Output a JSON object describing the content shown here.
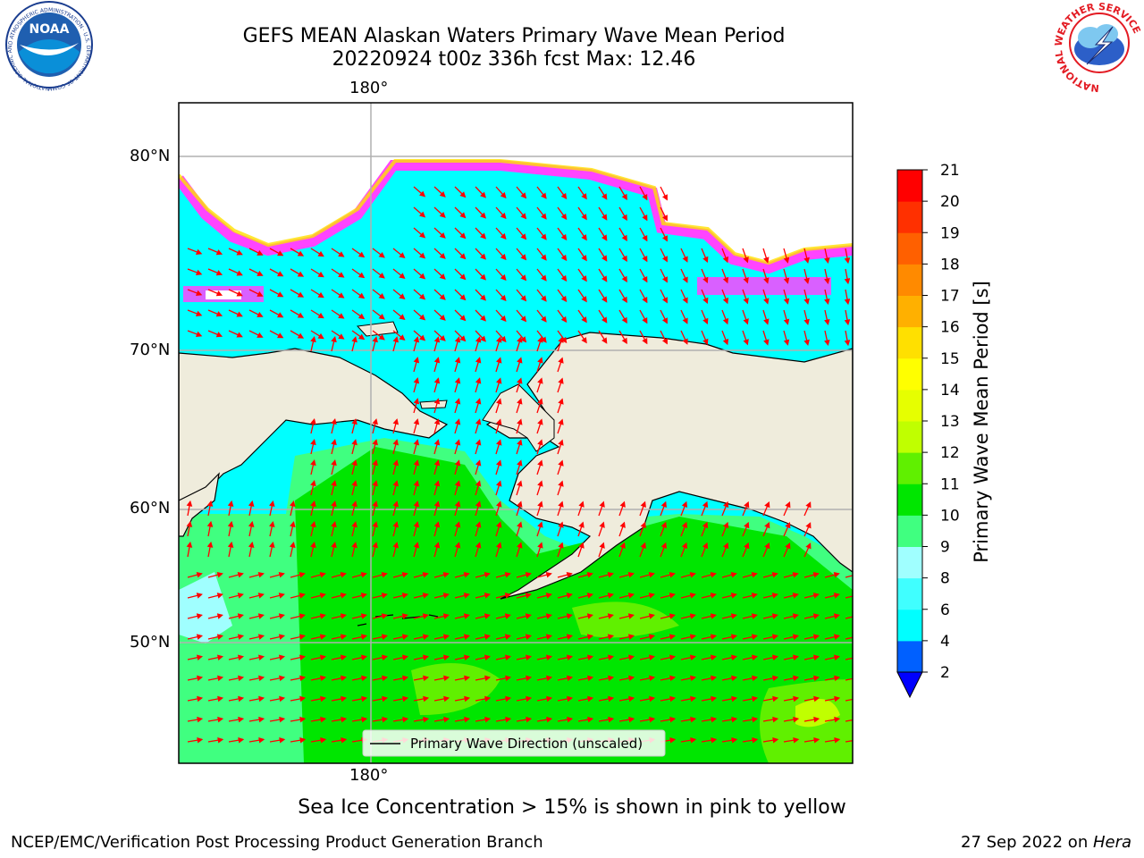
{
  "header": {
    "title_line1": "GEFS MEAN Alaskan Waters Primary Wave Mean Period",
    "title_line2": "20220924 t00z 336h fcst   Max: 12.46",
    "noaa_logo_text": "NOAA",
    "noaa_ring_text": "NATIONAL OCEANIC AND ATMOSPHERIC ADMINISTRATION · U.S. DEPARTMENT OF COMMERCE",
    "nws_ring_text": "NATIONAL WEATHER SERVICE"
  },
  "map": {
    "lon_label_top": "180°",
    "lon_label_bottom": "180°",
    "lat_labels": [
      "80°N",
      "70°N",
      "60°N",
      "50°N"
    ],
    "legend_label": "Primary Wave Direction (unscaled)",
    "colors": {
      "land": "#efecdc",
      "ice_pink": "#ff44ff",
      "ice_yellow": "#ffe100",
      "arrow": "#ff0000"
    }
  },
  "colorbar": {
    "label": "Primary Wave Mean Period [s]",
    "ticks": [
      "2",
      "4",
      "6",
      "8",
      "9",
      "10",
      "11",
      "12",
      "13",
      "14",
      "15",
      "16",
      "17",
      "18",
      "19",
      "20",
      "21"
    ],
    "colors": [
      "#0060ff",
      "#00ffff",
      "#40ffff",
      "#a0ffff",
      "#40ff80",
      "#00e600",
      "#60f000",
      "#c0ff00",
      "#e6ff00",
      "#ffff00",
      "#ffe000",
      "#ffb000",
      "#ff8a00",
      "#ff6000",
      "#ff3000",
      "#ff0000"
    ],
    "extend_color": "#0000ff"
  },
  "footer": {
    "note": "Sea Ice Concentration > 15% is shown in pink to yellow",
    "credit": "NCEP/EMC/Verification Post Processing Product Generation Branch",
    "date": "27 Sep 2022 on ",
    "machine": "Hera"
  }
}
